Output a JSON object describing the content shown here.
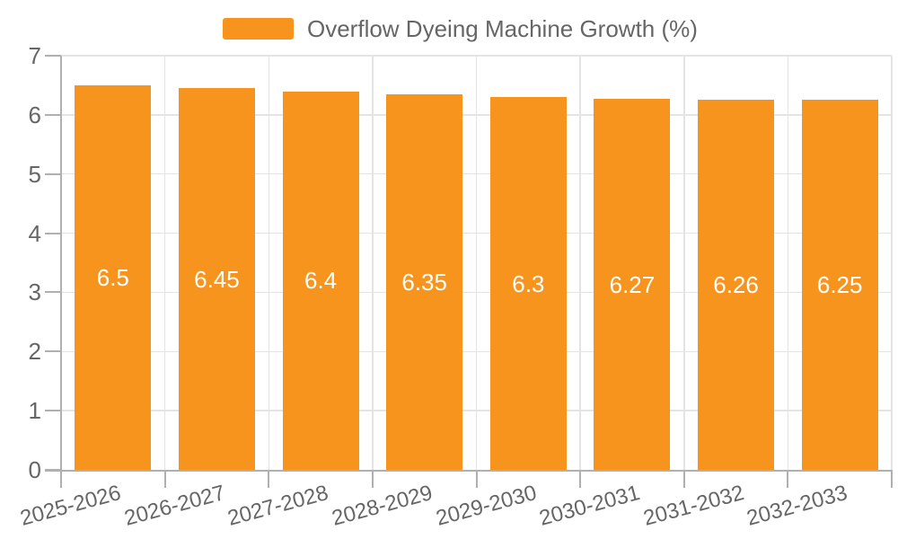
{
  "chart_data": {
    "type": "bar",
    "title": "Overflow Dyeing Machine Growth (%)",
    "categories": [
      "2025-2026",
      "2026-2027",
      "2027-2028",
      "2028-2029",
      "2029-2030",
      "2030-2031",
      "2031-2032",
      "2032-2033"
    ],
    "values": [
      6.5,
      6.45,
      6.4,
      6.35,
      6.3,
      6.27,
      6.26,
      6.25
    ],
    "value_labels": [
      "6.5",
      "6.45",
      "6.4",
      "6.35",
      "6.3",
      "6.27",
      "6.26",
      "6.25"
    ],
    "xlabel": "",
    "ylabel": "",
    "ylim": [
      0,
      7
    ],
    "y_ticks": [
      0,
      1,
      2,
      3,
      4,
      5,
      6,
      7
    ],
    "grid": true,
    "legend_position": "top",
    "colors": {
      "bar": "#F7941E",
      "value_label": "#FFFFFF",
      "axis_text": "#666666",
      "axis_line": "#B0B0B0",
      "gridline": "#E4E4E4",
      "background": "#FFFFFF"
    }
  }
}
